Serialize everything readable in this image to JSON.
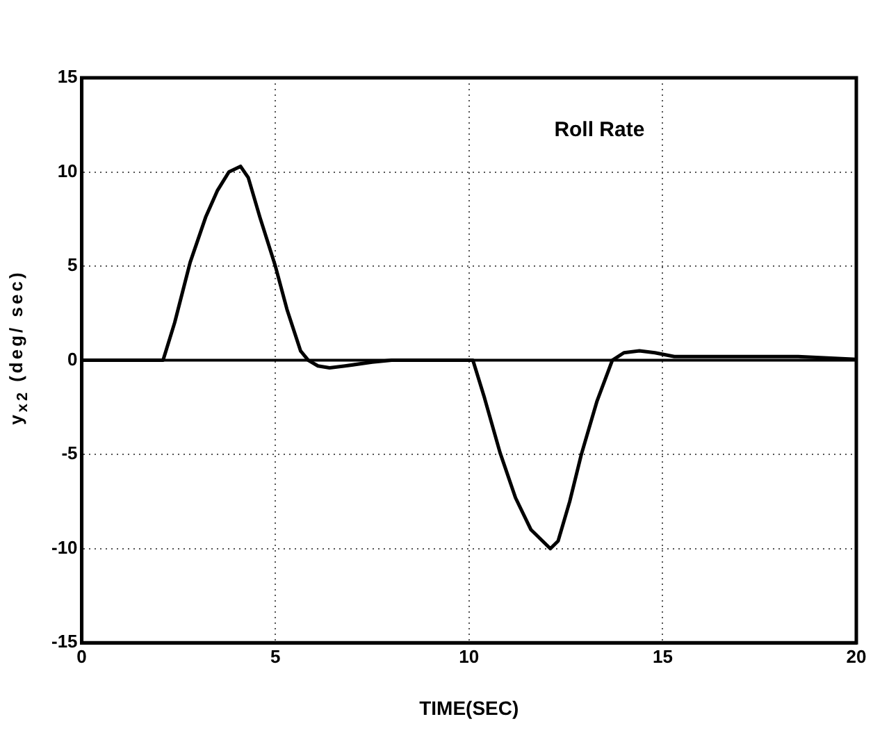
{
  "chart_data": {
    "type": "line",
    "xlabel": "TIME(SEC)",
    "ylabel": "y$_{x2}$ (deg/ sec)",
    "series": [
      {
        "name": "Roll Rate",
        "color": "#000000",
        "x": [
          0,
          2.1,
          2.4,
          2.8,
          3.2,
          3.5,
          3.8,
          4.1,
          4.3,
          4.6,
          5.0,
          5.3,
          5.65,
          5.85,
          6.1,
          6.4,
          6.8,
          7.5,
          8,
          9,
          10.1,
          10.4,
          10.8,
          11.2,
          11.6,
          12.1,
          12.3,
          12.6,
          12.9,
          13.3,
          13.7,
          14.0,
          14.4,
          14.8,
          15.3,
          16,
          17,
          18.5,
          20
        ],
        "values": [
          0,
          0,
          2,
          5.2,
          7.6,
          9,
          10,
          10.3,
          9.7,
          7.6,
          5,
          2.7,
          0.5,
          0,
          -0.3,
          -0.4,
          -0.3,
          -0.1,
          0,
          0,
          0,
          -2,
          -4.9,
          -7.3,
          -9,
          -10,
          -9.6,
          -7.5,
          -5,
          -2.2,
          0,
          0.4,
          0.5,
          0.4,
          0.2,
          0.2,
          0.2,
          0.2,
          0.05
        ]
      }
    ],
    "xlim": [
      0,
      20
    ],
    "xticks": [
      0,
      5,
      10,
      15,
      20
    ],
    "ylim": [
      -15,
      15
    ],
    "yticks": [
      -15,
      -10,
      -5,
      0,
      5,
      10,
      15
    ],
    "ref_lines": [
      {
        "axis": "y",
        "value": 0,
        "color": "#000000",
        "line_style": "solid"
      }
    ],
    "grid": true,
    "legend": false,
    "marker": "none",
    "line_style": "solid"
  }
}
